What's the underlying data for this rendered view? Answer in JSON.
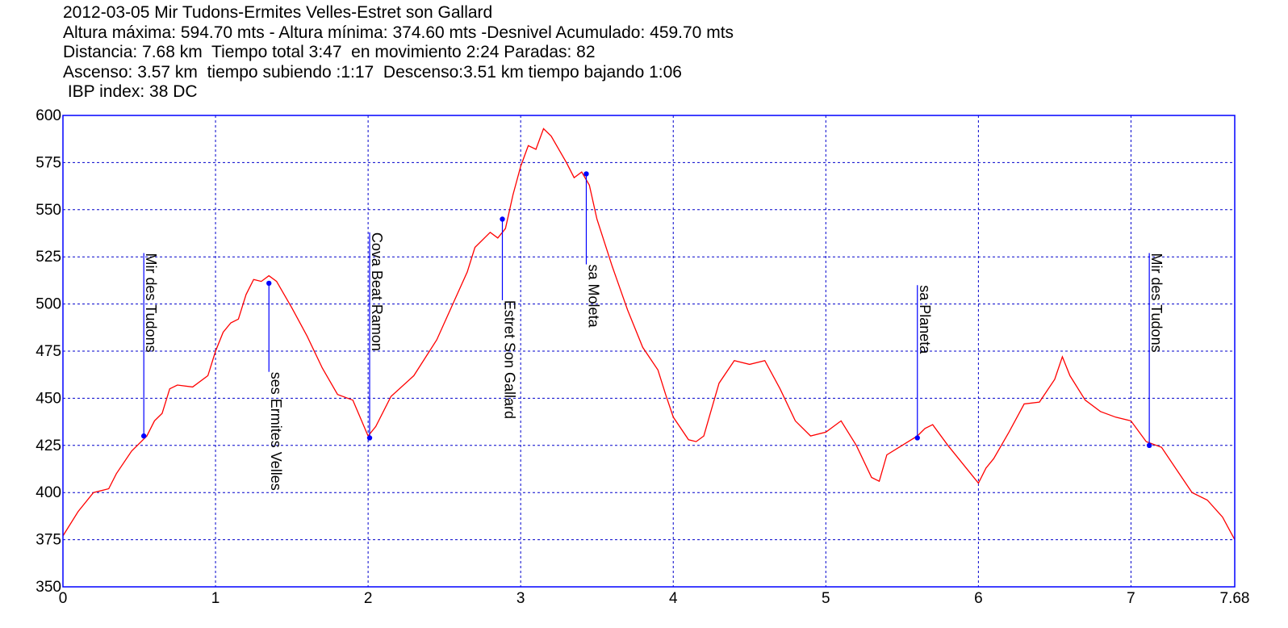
{
  "header": {
    "line1": "2012-03-05 Mir Tudons-Ermites Velles-Estret son Gallard",
    "line2": "Altura máxima: 594.70 mts - Altura mínima: 374.60 mts -Desnivel Acumulado: 459.70 mts",
    "line3": "Distancia: 7.68 km  Tiempo total 3:47  en movimiento 2:24 Paradas: 82",
    "line4": "Ascenso: 3.57 km  tiempo subiendo :1:17  Descenso:3.51 km tiempo bajando 1:06",
    "line5": " IBP index: 38 DC"
  },
  "chart_data": {
    "type": "line",
    "title": "2012-03-05 Mir Tudons-Ermites Velles-Estret son Gallard",
    "xlabel": "",
    "ylabel": "",
    "xlim": [
      0,
      7.68
    ],
    "ylim": [
      350,
      600
    ],
    "x_ticks": [
      "0",
      "1",
      "2",
      "3",
      "4",
      "5",
      "6",
      "7",
      "7.68"
    ],
    "x_tick_values": [
      0,
      1,
      2,
      3,
      4,
      5,
      6,
      7,
      7.68
    ],
    "y_ticks": [
      350,
      375,
      400,
      425,
      450,
      475,
      500,
      525,
      550,
      575,
      600
    ],
    "grid": true,
    "colors": {
      "line": "#ff0000",
      "frame": "#0000ff",
      "grid": "#0000cc",
      "waypoint": "#0000ff"
    },
    "series": [
      {
        "x": [
          0,
          0.1,
          0.2,
          0.3,
          0.35,
          0.45,
          0.55,
          0.6,
          0.65,
          0.7,
          0.75,
          0.85,
          0.95,
          1.0,
          1.05,
          1.1,
          1.15,
          1.2,
          1.25,
          1.3,
          1.35,
          1.4,
          1.5,
          1.6,
          1.7,
          1.8,
          1.9,
          2.0,
          2.05,
          2.15,
          2.3,
          2.45,
          2.55,
          2.65,
          2.7,
          2.8,
          2.85,
          2.9,
          2.95,
          3.0,
          3.05,
          3.1,
          3.15,
          3.2,
          3.3,
          3.35,
          3.4,
          3.45,
          3.5,
          3.6,
          3.7,
          3.8,
          3.9,
          3.95,
          4.0,
          4.1,
          4.15,
          4.2,
          4.25,
          4.3,
          4.4,
          4.5,
          4.6,
          4.7,
          4.8,
          4.9,
          5.0,
          5.1,
          5.2,
          5.3,
          5.35,
          5.4,
          5.5,
          5.6,
          5.65,
          5.7,
          5.8,
          5.9,
          6.0,
          6.05,
          6.1,
          6.2,
          6.3,
          6.4,
          6.5,
          6.55,
          6.6,
          6.7,
          6.8,
          6.9,
          7.0,
          7.1,
          7.2,
          7.3,
          7.4,
          7.5,
          7.6,
          7.68
        ],
        "y": [
          377,
          390,
          400,
          402,
          410,
          422,
          430,
          438,
          442,
          455,
          457,
          456,
          462,
          475,
          485,
          490,
          492,
          505,
          513,
          512,
          515,
          512,
          498,
          483,
          466,
          452,
          449,
          430,
          435,
          451,
          462,
          481,
          499,
          517,
          530,
          538,
          535,
          540,
          558,
          573,
          584,
          582,
          593,
          589,
          575,
          567,
          570,
          563,
          545,
          520,
          497,
          477,
          465,
          452,
          440,
          428,
          427,
          430,
          444,
          458,
          470,
          468,
          470,
          455,
          438,
          430,
          432,
          438,
          425,
          408,
          406,
          420,
          425,
          430,
          434,
          436,
          425,
          415,
          405,
          413,
          418,
          432,
          447,
          448,
          460,
          472,
          462,
          449,
          443,
          440,
          438,
          427,
          424,
          412,
          400,
          396,
          387,
          375
        ]
      }
    ],
    "waypoints": [
      {
        "label": "Mir des Tudons",
        "x": 0.53,
        "y": 430,
        "label_y": 527
      },
      {
        "label": "ses Ermites Velles",
        "x": 1.35,
        "y": 511,
        "label_y": 464
      },
      {
        "label": "Cova Beat Ramon",
        "x": 2.01,
        "y": 429,
        "label_y": 538
      },
      {
        "label": "Estret Son Gallard",
        "x": 2.88,
        "y": 545,
        "label_y": 502
      },
      {
        "label": "sa Moleta",
        "x": 3.43,
        "y": 569,
        "label_y": 521
      },
      {
        "label": "sa Planeta",
        "x": 5.6,
        "y": 429,
        "label_y": 510
      },
      {
        "label": "Mir des Tudons",
        "x": 7.12,
        "y": 425,
        "label_y": 527
      }
    ]
  }
}
